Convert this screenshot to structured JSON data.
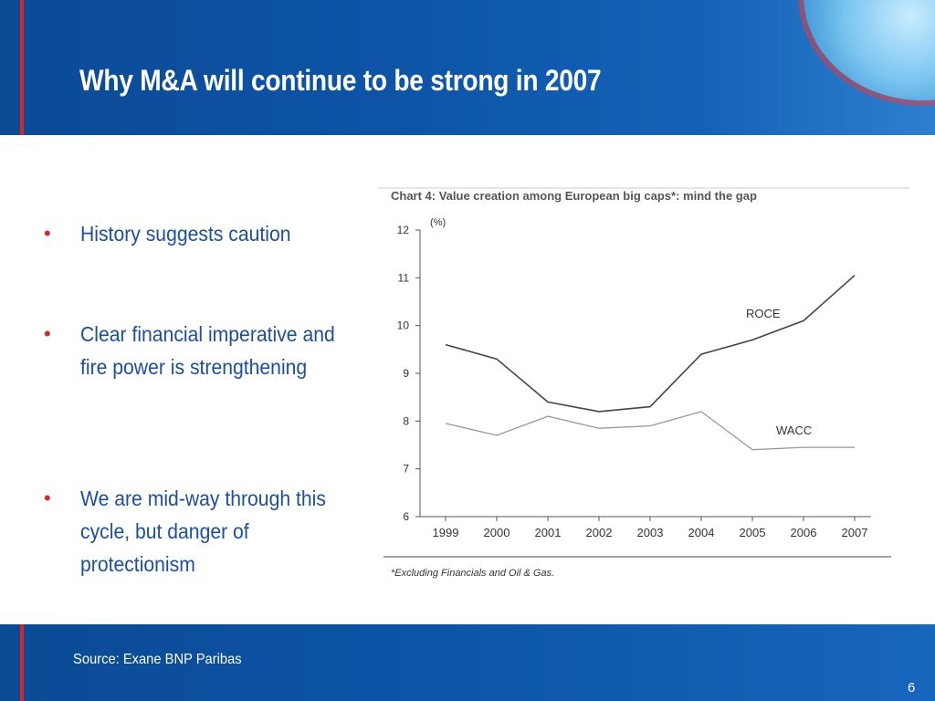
{
  "slide": {
    "title": "Why M&A will continue to be strong in 2007",
    "bullets": [
      {
        "marker": "•",
        "text": "History suggests caution"
      },
      {
        "marker": "•",
        "text": "Clear financial imperative and fire power is strengthening"
      },
      {
        "marker": "•",
        "text": "We are mid-way through this cycle, but danger of protectionism"
      }
    ],
    "source": "Source: Exane BNP Paribas",
    "page_number": "6"
  },
  "colors": {
    "header_blue": "#0d55a8",
    "accent_red": "#d62828",
    "bullet_text": "#1c4fa0",
    "roce_line": "#444444",
    "wacc_line": "#999999"
  },
  "chart_data": {
    "type": "line",
    "title": "Chart 4: Value creation among European big caps*: mind the gap",
    "ylabel": "(%)",
    "xlabel": "",
    "x": [
      "1999",
      "2000",
      "2001",
      "2002",
      "2003",
      "2004",
      "2005",
      "2006",
      "2007"
    ],
    "ylim": [
      6,
      12
    ],
    "yticks": [
      6,
      7,
      8,
      9,
      10,
      11,
      12
    ],
    "series": [
      {
        "name": "ROCE",
        "values": [
          9.6,
          9.3,
          8.4,
          8.2,
          8.3,
          9.4,
          9.7,
          10.1,
          11.05
        ]
      },
      {
        "name": "WACC",
        "values": [
          7.95,
          7.7,
          8.1,
          7.85,
          7.9,
          8.2,
          7.4,
          7.45,
          7.45
        ]
      }
    ],
    "footnote": "*Excluding Financials and Oil & Gas.",
    "grid": false
  }
}
